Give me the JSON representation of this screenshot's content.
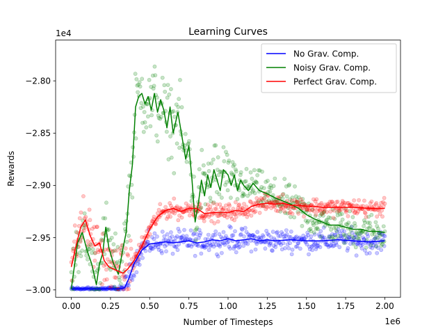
{
  "chart_data": {
    "type": "line",
    "title": "Learning Curves",
    "xlabel": "Number of Timesteps",
    "ylabel": "Rewards",
    "x_offset_label": "1e6",
    "y_offset_label": "1e4",
    "xlim": [
      -0.1,
      2.1
    ],
    "ylim": [
      -3.007,
      -2.761
    ],
    "x_ticks": [
      0.0,
      0.25,
      0.5,
      0.75,
      1.0,
      1.25,
      1.5,
      1.75,
      2.0
    ],
    "x_tick_labels": [
      "0.00",
      "0.25",
      "0.50",
      "0.75",
      "1.00",
      "1.25",
      "1.50",
      "1.75",
      "2.00"
    ],
    "y_ticks": [
      -3.0,
      -2.95,
      -2.9,
      -2.85,
      -2.8
    ],
    "y_tick_labels": [
      "−3.00",
      "−2.95",
      "−2.90",
      "−2.85",
      "−2.80"
    ],
    "grid": false,
    "legend_position": "top-right",
    "series": [
      {
        "name": "No Grav. Comp.",
        "color": "#0000ff",
        "x": [
          0.0,
          0.1,
          0.2,
          0.3,
          0.34,
          0.37,
          0.4,
          0.45,
          0.5,
          0.55,
          0.6,
          0.65,
          0.7,
          0.75,
          0.8,
          0.85,
          0.9,
          0.95,
          1.0,
          1.05,
          1.1,
          1.15,
          1.2,
          1.25,
          1.3,
          1.4,
          1.5,
          1.6,
          1.7,
          1.8,
          1.9,
          2.0
        ],
        "y": [
          -2.999,
          -2.999,
          -2.999,
          -2.999,
          -2.998,
          -2.988,
          -2.975,
          -2.962,
          -2.956,
          -2.955,
          -2.954,
          -2.955,
          -2.954,
          -2.953,
          -2.955,
          -2.954,
          -2.952,
          -2.953,
          -2.951,
          -2.953,
          -2.952,
          -2.951,
          -2.953,
          -2.952,
          -2.953,
          -2.952,
          -2.953,
          -2.953,
          -2.952,
          -2.953,
          -2.954,
          -2.953
        ]
      },
      {
        "name": "Noisy Grav. Comp.",
        "color": "#008000",
        "x": [
          0.0,
          0.04,
          0.07,
          0.1,
          0.13,
          0.16,
          0.18,
          0.2,
          0.22,
          0.24,
          0.27,
          0.3,
          0.33,
          0.35,
          0.37,
          0.39,
          0.41,
          0.43,
          0.45,
          0.47,
          0.49,
          0.51,
          0.53,
          0.55,
          0.57,
          0.59,
          0.61,
          0.63,
          0.65,
          0.68,
          0.7,
          0.73,
          0.75,
          0.77,
          0.79,
          0.81,
          0.83,
          0.85,
          0.87,
          0.89,
          0.91,
          0.93,
          0.95,
          0.97,
          1.0,
          1.02,
          1.04,
          1.06,
          1.08,
          1.1,
          1.13,
          1.16,
          1.2,
          1.25,
          1.3,
          1.35,
          1.4,
          1.45,
          1.5,
          1.55,
          1.6,
          1.65,
          1.7,
          1.75,
          1.8,
          1.85,
          1.9,
          1.95,
          2.0
        ],
        "y": [
          -2.999,
          -2.955,
          -2.945,
          -2.962,
          -2.975,
          -2.995,
          -2.975,
          -2.965,
          -2.94,
          -2.96,
          -2.975,
          -2.985,
          -2.96,
          -2.945,
          -2.905,
          -2.88,
          -2.825,
          -2.815,
          -2.812,
          -2.822,
          -2.815,
          -2.828,
          -2.812,
          -2.83,
          -2.818,
          -2.828,
          -2.845,
          -2.825,
          -2.85,
          -2.83,
          -2.848,
          -2.875,
          -2.862,
          -2.895,
          -2.935,
          -2.918,
          -2.895,
          -2.91,
          -2.89,
          -2.902,
          -2.885,
          -2.895,
          -2.905,
          -2.885,
          -2.89,
          -2.9,
          -2.89,
          -2.905,
          -2.895,
          -2.9,
          -2.905,
          -2.898,
          -2.905,
          -2.908,
          -2.912,
          -2.915,
          -2.918,
          -2.922,
          -2.928,
          -2.932,
          -2.935,
          -2.938,
          -2.938,
          -2.94,
          -2.942,
          -2.942,
          -2.944,
          -2.944,
          -2.945
        ]
      },
      {
        "name": "Perfect Grav. Comp.",
        "color": "#ff0000",
        "x": [
          0.0,
          0.03,
          0.06,
          0.09,
          0.12,
          0.15,
          0.18,
          0.21,
          0.24,
          0.27,
          0.3,
          0.33,
          0.36,
          0.4,
          0.45,
          0.5,
          0.55,
          0.6,
          0.65,
          0.7,
          0.75,
          0.8,
          0.85,
          0.9,
          0.95,
          1.0,
          1.05,
          1.1,
          1.15,
          1.2,
          1.25,
          1.3,
          1.35,
          1.4,
          1.45,
          1.5,
          1.55,
          1.6,
          1.7,
          1.8,
          1.9,
          2.0
        ],
        "y": [
          -2.978,
          -2.958,
          -2.94,
          -2.933,
          -2.948,
          -2.958,
          -2.955,
          -2.972,
          -2.978,
          -2.98,
          -2.982,
          -2.984,
          -2.98,
          -2.972,
          -2.958,
          -2.942,
          -2.93,
          -2.924,
          -2.922,
          -2.925,
          -2.922,
          -2.922,
          -2.927,
          -2.926,
          -2.926,
          -2.926,
          -2.924,
          -2.925,
          -2.92,
          -2.918,
          -2.917,
          -2.918,
          -2.917,
          -2.919,
          -2.919,
          -2.92,
          -2.92,
          -2.921,
          -2.921,
          -2.921,
          -2.922,
          -2.922
        ]
      }
    ]
  }
}
